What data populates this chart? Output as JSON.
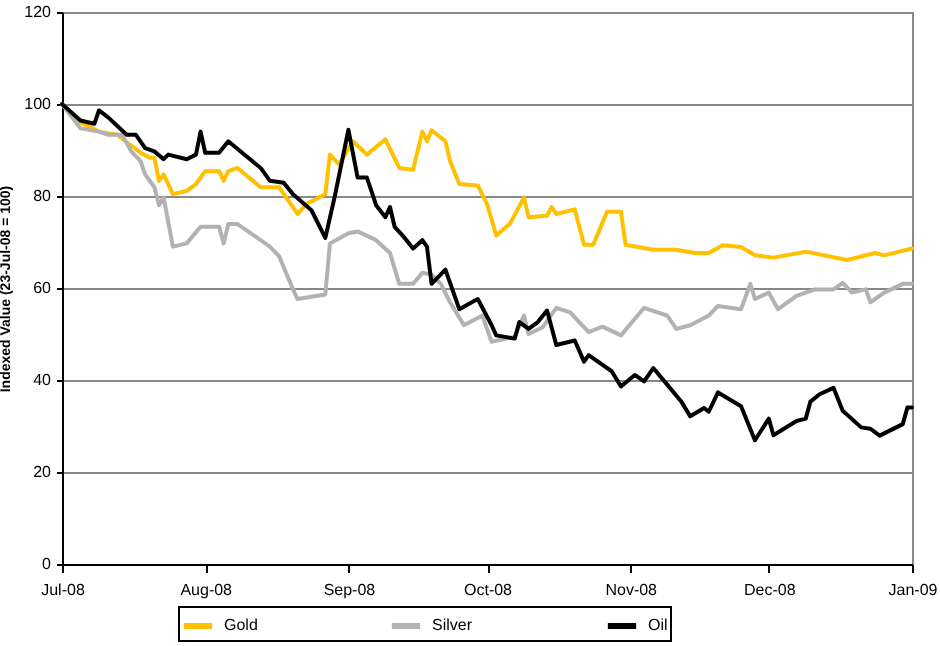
{
  "chart_data": {
    "type": "line",
    "ylabel": "Indexed Value (23-Jul-08 = 100)",
    "xlim": [
      "2008-07-23",
      "2009-01-23"
    ],
    "xticks": [
      {
        "value": "2008-07-23",
        "label": "Jul-08"
      },
      {
        "value": "2008-08-23",
        "label": "Aug-08"
      },
      {
        "value": "2008-09-23",
        "label": "Sep-08"
      },
      {
        "value": "2008-10-23",
        "label": "Oct-08"
      },
      {
        "value": "2008-11-23",
        "label": "Nov-08"
      },
      {
        "value": "2008-12-23",
        "label": "Dec-08"
      },
      {
        "value": "2009-01-23",
        "label": "Jan-09"
      }
    ],
    "ylim": [
      0,
      120
    ],
    "yticks": [
      0,
      20,
      40,
      60,
      80,
      100,
      120
    ],
    "grid": "y",
    "legend": "bottom",
    "marker": "none",
    "line_style": "solid",
    "series": [
      {
        "name": "Gold",
        "color": "#ffc000",
        "x": [
          "2008-07-23",
          "2008-07-27",
          "2008-07-31",
          "2008-08-04",
          "2008-08-09",
          "2008-08-11",
          "2008-08-12",
          "2008-08-13",
          "2008-08-14",
          "2008-08-16",
          "2008-08-19",
          "2008-08-21",
          "2008-08-23",
          "2008-08-26",
          "2008-08-27",
          "2008-08-28",
          "2008-08-30",
          "2008-09-04",
          "2008-09-08",
          "2008-09-12",
          "2008-09-14",
          "2008-09-18",
          "2008-09-19",
          "2008-09-21",
          "2008-09-24",
          "2008-09-27",
          "2008-10-01",
          "2008-10-04",
          "2008-10-07",
          "2008-10-09",
          "2008-10-10",
          "2008-10-11",
          "2008-10-14",
          "2008-10-15",
          "2008-10-17",
          "2008-10-21",
          "2008-10-23",
          "2008-10-25",
          "2008-10-28",
          "2008-10-31",
          "2008-11-01",
          "2008-11-05",
          "2008-11-06",
          "2008-11-07",
          "2008-11-11",
          "2008-11-13",
          "2008-11-15",
          "2008-11-18",
          "2008-11-21",
          "2008-11-22",
          "2008-11-28",
          "2008-12-03",
          "2008-12-07",
          "2008-12-10",
          "2008-12-13",
          "2008-12-17",
          "2008-12-20",
          "2008-12-24",
          "2008-12-31",
          "2009-01-09",
          "2009-01-15",
          "2009-01-17",
          "2009-01-23"
        ],
        "values": [
          100,
          96,
          94,
          93.3,
          89.4,
          88.3,
          88.3,
          83.3,
          84.7,
          80.4,
          81.1,
          82.6,
          85.4,
          85.4,
          83.3,
          85.4,
          86.1,
          81.9,
          81.9,
          76.1,
          78.3,
          80.4,
          89,
          86.9,
          91.9,
          89,
          92.3,
          86.1,
          85.7,
          94,
          91.9,
          94.3,
          91.9,
          87.6,
          82.6,
          82.3,
          78.3,
          71.4,
          74,
          79.7,
          75.4,
          75.7,
          77.6,
          76.1,
          77.1,
          69.4,
          69.4,
          76.6,
          76.6,
          69.4,
          68.3,
          68.3,
          67.6,
          67.6,
          69.3,
          68.9,
          67.1,
          66.6,
          67.9,
          66.1,
          67.6,
          67.1,
          68.6
        ]
      },
      {
        "name": "Silver",
        "color": "#b2b2b2",
        "x": [
          "2008-07-23",
          "2008-07-27",
          "2008-07-31",
          "2008-08-02",
          "2008-08-05",
          "2008-08-07",
          "2008-08-09",
          "2008-08-10",
          "2008-08-12",
          "2008-08-13",
          "2008-08-14",
          "2008-08-16",
          "2008-08-19",
          "2008-08-22",
          "2008-08-26",
          "2008-08-27",
          "2008-08-28",
          "2008-08-30",
          "2008-09-04",
          "2008-09-06",
          "2008-09-08",
          "2008-09-11",
          "2008-09-12",
          "2008-09-18",
          "2008-09-19",
          "2008-09-23",
          "2008-09-25",
          "2008-09-29",
          "2008-10-02",
          "2008-10-04",
          "2008-10-07",
          "2008-10-09",
          "2008-10-11",
          "2008-10-13",
          "2008-10-15",
          "2008-10-18",
          "2008-10-22",
          "2008-10-24",
          "2008-10-29",
          "2008-10-31",
          "2008-11-01",
          "2008-11-04",
          "2008-11-07",
          "2008-11-10",
          "2008-11-14",
          "2008-11-17",
          "2008-11-21",
          "2008-11-26",
          "2008-12-01",
          "2008-12-03",
          "2008-12-06",
          "2008-12-10",
          "2008-12-12",
          "2008-12-17",
          "2008-12-19",
          "2008-12-20",
          "2008-12-23",
          "2008-12-25",
          "2008-12-29",
          "2009-01-02",
          "2009-01-06",
          "2009-01-08",
          "2009-01-10",
          "2009-01-13",
          "2009-01-14",
          "2009-01-17",
          "2009-01-21",
          "2009-01-23"
        ],
        "values": [
          100,
          94.7,
          94,
          93.3,
          93.3,
          89.7,
          87.6,
          84.7,
          81.9,
          78,
          79.7,
          69,
          69.7,
          73.3,
          73.3,
          69.7,
          73.9,
          73.9,
          70.4,
          69,
          66.9,
          59.7,
          57.6,
          58.6,
          69.7,
          71.9,
          72.3,
          70.4,
          67.6,
          60.9,
          60.9,
          63.3,
          62.9,
          60.9,
          56.9,
          51.9,
          54,
          48.3,
          49.4,
          54,
          50,
          51.4,
          55.7,
          54.7,
          50.4,
          51.6,
          49.7,
          55.7,
          54,
          51.1,
          51.9,
          54,
          56.1,
          55.4,
          60.9,
          57.6,
          59,
          55.4,
          58.3,
          59.7,
          59.7,
          61.1,
          59,
          59.7,
          56.9,
          59,
          60.9,
          60.9
        ]
      },
      {
        "name": "Oil",
        "color": "#000000",
        "x": [
          "2008-07-23",
          "2008-07-27",
          "2008-07-30",
          "2008-07-31",
          "2008-08-02",
          "2008-08-06",
          "2008-08-08",
          "2008-08-10",
          "2008-08-12",
          "2008-08-14",
          "2008-08-15",
          "2008-08-19",
          "2008-08-21",
          "2008-08-22",
          "2008-08-23",
          "2008-08-26",
          "2008-08-28",
          "2008-08-31",
          "2008-09-04",
          "2008-09-06",
          "2008-09-09",
          "2008-09-11",
          "2008-09-15",
          "2008-09-18",
          "2008-09-20",
          "2008-09-23",
          "2008-09-25",
          "2008-09-27",
          "2008-09-29",
          "2008-10-01",
          "2008-10-02",
          "2008-10-03",
          "2008-10-05",
          "2008-10-07",
          "2008-10-09",
          "2008-10-10",
          "2008-10-11",
          "2008-10-14",
          "2008-10-17",
          "2008-10-21",
          "2008-10-24",
          "2008-10-25",
          "2008-10-29",
          "2008-10-30",
          "2008-11-01",
          "2008-11-03",
          "2008-11-05",
          "2008-11-07",
          "2008-11-11",
          "2008-11-13",
          "2008-11-14",
          "2008-11-19",
          "2008-11-21",
          "2008-11-24",
          "2008-11-26",
          "2008-11-28",
          "2008-12-01",
          "2008-12-04",
          "2008-12-06",
          "2008-12-09",
          "2008-12-10",
          "2008-12-12",
          "2008-12-17",
          "2008-12-20",
          "2008-12-23",
          "2008-12-24",
          "2008-12-29",
          "2008-12-31",
          "2009-01-01",
          "2009-01-03",
          "2009-01-06",
          "2009-01-08",
          "2009-01-12",
          "2009-01-14",
          "2009-01-16",
          "2009-01-21",
          "2009-01-22",
          "2009-01-23"
        ],
        "values": [
          100,
          96.4,
          95.7,
          98.6,
          97.1,
          93.3,
          93.3,
          90.4,
          89.7,
          88,
          89,
          88,
          89,
          94,
          89.4,
          89.4,
          91.9,
          89.4,
          86.1,
          83.3,
          82.9,
          80.4,
          76.9,
          70.9,
          79.7,
          94.4,
          84,
          84,
          78,
          75.4,
          77.6,
          73.3,
          71.1,
          68.6,
          70.4,
          69,
          60.9,
          64,
          55.4,
          57.6,
          51.9,
          49.7,
          49,
          52.6,
          51.1,
          52.6,
          55.1,
          47.6,
          48.6,
          44,
          45.4,
          41.9,
          38.6,
          41.1,
          39.7,
          42.6,
          39,
          35.4,
          32.1,
          33.9,
          33.1,
          37.3,
          34.3,
          26.9,
          31.6,
          28,
          31.1,
          31.6,
          35.3,
          36.9,
          38.3,
          33.3,
          29.7,
          29.4,
          27.9,
          30.4,
          34,
          34
        ]
      }
    ]
  }
}
